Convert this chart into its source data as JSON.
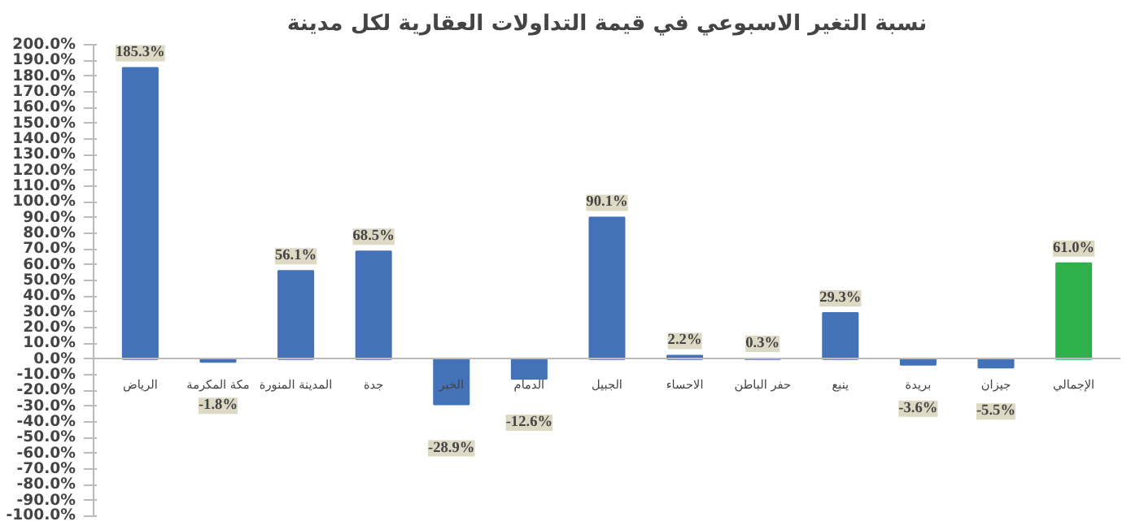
{
  "chart_data": {
    "type": "bar",
    "title": "نسبة التغير الاسبوعي في قيمة التداولات العقارية لكل مدينة",
    "categories": [
      "الرياض",
      "مكة المكرمة",
      "المدينة المنورة",
      "جدة",
      "الخبر",
      "الدمام",
      "الجبيل",
      "الاحساء",
      "حفر الباطن",
      "ينبع",
      "بريدة",
      "جيزان",
      "الإجمالي"
    ],
    "values": [
      185.3,
      -1.8,
      56.1,
      68.5,
      -28.9,
      -12.6,
      90.1,
      2.2,
      0.3,
      29.3,
      -3.6,
      -5.5,
      61.0
    ],
    "value_labels": [
      "185.3%",
      "-1.8%",
      "56.1%",
      "68.5%",
      "-28.9%",
      "-12.6%",
      "90.1%",
      "2.2%",
      "0.3%",
      "29.3%",
      "-3.6%",
      "-5.5%",
      "61.0%"
    ],
    "colors": [
      "#4472b8",
      "#4472b8",
      "#4472b8",
      "#4472b8",
      "#4472b8",
      "#4472b8",
      "#4472b8",
      "#4472b8",
      "#4472b8",
      "#4472b8",
      "#4472b8",
      "#4472b8",
      "#2eb04a"
    ],
    "ylim": [
      -100,
      200
    ],
    "yticks": [
      {
        "value": -100,
        "label": "-100.0%"
      },
      {
        "value": -90,
        "label": "-90.0%"
      },
      {
        "value": -80,
        "label": "-80.0%"
      },
      {
        "value": -70,
        "label": "-70.0%"
      },
      {
        "value": -60,
        "label": "-60.0%"
      },
      {
        "value": -50,
        "label": "-50.0%"
      },
      {
        "value": -40,
        "label": "-40.0%"
      },
      {
        "value": -30,
        "label": "-30.0%"
      },
      {
        "value": -20,
        "label": "-20.0%"
      },
      {
        "value": -10,
        "label": "-10.0%"
      },
      {
        "value": 0,
        "label": "0.0%"
      },
      {
        "value": 10,
        "label": "10.0%"
      },
      {
        "value": 20,
        "label": "20.0%"
      },
      {
        "value": 30,
        "label": "30.0%"
      },
      {
        "value": 40,
        "label": "40.0%"
      },
      {
        "value": 50,
        "label": "50.0%"
      },
      {
        "value": 60,
        "label": "60.0%"
      },
      {
        "value": 70,
        "label": "70.0%"
      },
      {
        "value": 80,
        "label": "80.0%"
      },
      {
        "value": 90,
        "label": "90.0%"
      },
      {
        "value": 100,
        "label": "100.0%"
      },
      {
        "value": 110,
        "label": "110.0%"
      },
      {
        "value": 120,
        "label": "120.0%"
      },
      {
        "value": 130,
        "label": "130.0%"
      },
      {
        "value": 140,
        "label": "140.0%"
      },
      {
        "value": 150,
        "label": "150.0%"
      },
      {
        "value": 160,
        "label": "160.0%"
      },
      {
        "value": 170,
        "label": "170.0%"
      },
      {
        "value": 180,
        "label": "180.0%"
      },
      {
        "value": 190,
        "label": "190.0%"
      },
      {
        "value": 200,
        "label": "200.0%"
      }
    ],
    "grid": false
  }
}
